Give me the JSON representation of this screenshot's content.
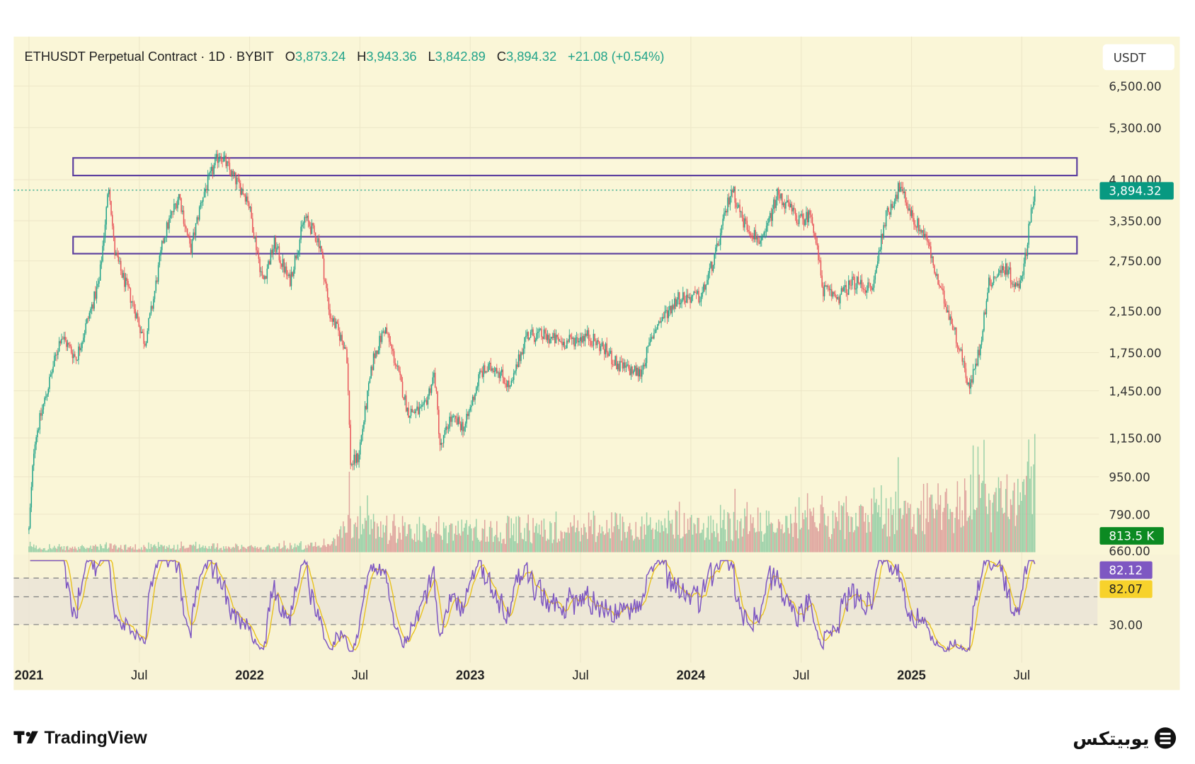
{
  "header": {
    "symbol": "ETHUSDT Perpetual Contract · 1D · BYBIT",
    "o_label": "O",
    "o_value": "3,873.24",
    "h_label": "H",
    "h_value": "3,943.36",
    "l_label": "L",
    "l_value": "3,842.89",
    "c_label": "C",
    "c_value": "3,894.32",
    "change": "+21.08 (+0.54%)"
  },
  "currency_label": "USDT",
  "last_price_tag": "3,894.32",
  "volume_tag": "813.5 K",
  "rsi_tag": "82.12",
  "rsi_ma_tag": "82.07",
  "rsi_level_label": "30.00",
  "branding": {
    "left": "TradingView",
    "right": "یوبیتکس"
  },
  "colors": {
    "up": "#22a38a",
    "down": "#e8555a",
    "zone": "#5a3d9e",
    "rsi": "#7e57c2",
    "rsi_ma": "#e9c21e",
    "price_tag": "#089981",
    "volume_tag": "#0c8a22",
    "background": "#faf6d7"
  },
  "chart_data": {
    "type": "candlestick",
    "title": "ETHUSDT Perpetual Contract · 1D · BYBIT",
    "scale": "log",
    "ylim": [
      660,
      6500
    ],
    "y_ticks": [
      "6,500.00",
      "5,300.00",
      "4,100.00",
      "3,350.00",
      "2,750.00",
      "2,150.00",
      "1,750.00",
      "1,450.00",
      "1,150.00",
      "950.00",
      "790.00",
      "660.00"
    ],
    "y_tick_values": [
      6500,
      5300,
      4100,
      3350,
      2750,
      2150,
      1750,
      1450,
      1150,
      950,
      790,
      660
    ],
    "x_ticks": [
      {
        "label": "2021",
        "t": 2021.0,
        "major": true
      },
      {
        "label": "Jul",
        "t": 2021.5,
        "major": false
      },
      {
        "label": "2022",
        "t": 2022.0,
        "major": true
      },
      {
        "label": "Jul",
        "t": 2022.5,
        "major": false
      },
      {
        "label": "2023",
        "t": 2023.0,
        "major": true
      },
      {
        "label": "Jul",
        "t": 2023.5,
        "major": false
      },
      {
        "label": "2024",
        "t": 2024.0,
        "major": true
      },
      {
        "label": "Jul",
        "t": 2024.5,
        "major": false
      },
      {
        "label": "2025",
        "t": 2025.0,
        "major": true
      },
      {
        "label": "Jul",
        "t": 2025.5,
        "major": false
      }
    ],
    "price_path": [
      [
        2021.0,
        730
      ],
      [
        2021.024,
        1128
      ],
      [
        2021.076,
        1412
      ],
      [
        2021.145,
        1908
      ],
      [
        2021.214,
        1703
      ],
      [
        2021.266,
        2057
      ],
      [
        2021.318,
        2479
      ],
      [
        2021.363,
        4036
      ],
      [
        2021.387,
        2880
      ],
      [
        2021.421,
        2575
      ],
      [
        2021.473,
        2216
      ],
      [
        2021.525,
        1837
      ],
      [
        2021.56,
        2216
      ],
      [
        2021.611,
        3104
      ],
      [
        2021.68,
        3818
      ],
      [
        2021.732,
        2880
      ],
      [
        2021.784,
        3747
      ],
      [
        2021.864,
        4692
      ],
      [
        2021.922,
        4188
      ],
      [
        2021.991,
        3747
      ],
      [
        2022.06,
        2479
      ],
      [
        2022.112,
        2990
      ],
      [
        2022.181,
        2479
      ],
      [
        2022.25,
        3409
      ],
      [
        2022.32,
        2990
      ],
      [
        2022.361,
        2133
      ],
      [
        2022.44,
        1770
      ],
      [
        2022.458,
        1007
      ],
      [
        2022.492,
        1046
      ],
      [
        2022.561,
        1703
      ],
      [
        2022.613,
        1980
      ],
      [
        2022.665,
        1641
      ],
      [
        2022.717,
        1311
      ],
      [
        2022.786,
        1311
      ],
      [
        2022.838,
        1580
      ],
      [
        2022.865,
        1086
      ],
      [
        2022.907,
        1262
      ],
      [
        2022.976,
        1216
      ],
      [
        2023.045,
        1580
      ],
      [
        2023.114,
        1641
      ],
      [
        2023.183,
        1466
      ],
      [
        2023.252,
        1908
      ],
      [
        2023.321,
        1908
      ],
      [
        2023.425,
        1837
      ],
      [
        2023.528,
        1908
      ],
      [
        2023.615,
        1770
      ],
      [
        2023.667,
        1641
      ],
      [
        2023.77,
        1580
      ],
      [
        2023.839,
        1980
      ],
      [
        2023.943,
        2300
      ],
      [
        2024.047,
        2300
      ],
      [
        2024.116,
        2880
      ],
      [
        2024.185,
        3960
      ],
      [
        2024.237,
        3344
      ],
      [
        2024.323,
        2990
      ],
      [
        2024.392,
        3818
      ],
      [
        2024.496,
        3344
      ],
      [
        2024.547,
        3473
      ],
      [
        2024.599,
        2389
      ],
      [
        2024.668,
        2300
      ],
      [
        2024.737,
        2479
      ],
      [
        2024.824,
        2389
      ],
      [
        2024.876,
        3344
      ],
      [
        2024.945,
        3960
      ],
      [
        2025.014,
        3344
      ],
      [
        2025.066,
        3104
      ],
      [
        2025.117,
        2479
      ],
      [
        2025.169,
        2133
      ],
      [
        2025.221,
        1770
      ],
      [
        2025.263,
        1466
      ],
      [
        2025.307,
        1770
      ],
      [
        2025.352,
        2479
      ],
      [
        2025.428,
        2672
      ],
      [
        2025.48,
        2389
      ],
      [
        2025.515,
        2772
      ],
      [
        2025.539,
        3473
      ],
      [
        2025.563,
        3894.32
      ]
    ],
    "zones": [
      {
        "name": "upper resistance zone",
        "from": 2021.2,
        "to": 2025.75,
        "low": 4186,
        "high": 4565
      },
      {
        "name": "lower support zone",
        "from": 2021.2,
        "to": 2025.75,
        "low": 2849,
        "high": 3097
      }
    ],
    "last_price": 3894.32,
    "volume_relative": [
      [
        2021.0,
        0.06
      ],
      [
        2022.35,
        0.08
      ],
      [
        2022.45,
        0.35
      ],
      [
        2023.0,
        0.3
      ],
      [
        2024.0,
        0.35
      ],
      [
        2024.6,
        0.45
      ],
      [
        2025.0,
        0.6
      ],
      [
        2025.563,
        0.85
      ]
    ],
    "rsi": {
      "levels": [
        70,
        50,
        30
      ],
      "last": 82.12,
      "ma_last": 82.07,
      "ylim": [
        15,
        90
      ]
    }
  }
}
